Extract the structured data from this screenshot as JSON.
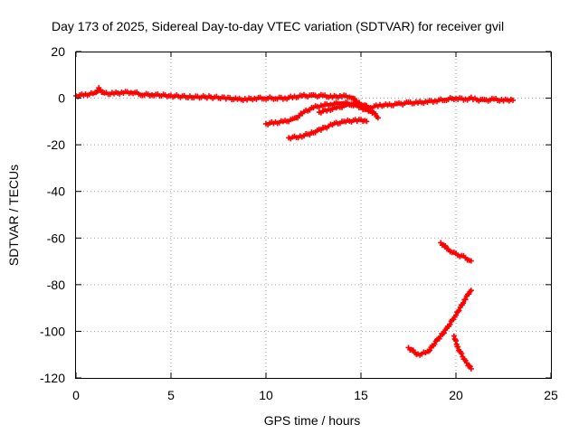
{
  "chart_data": {
    "type": "scatter",
    "title": "Day 173 of 2025, Sidereal Day-to-day VTEC variation (SDTVAR) for receiver gvil",
    "xlabel": "GPS time / hours",
    "ylabel": "SDTVAR / TECUs",
    "xlim": [
      0,
      25
    ],
    "ylim": [
      -120,
      20
    ],
    "xticks": [
      0,
      5,
      10,
      15,
      20,
      25
    ],
    "yticks": [
      20,
      0,
      -20,
      -40,
      -60,
      -80,
      -100,
      -120
    ],
    "grid": true,
    "marker_color": "#ff0000",
    "series": [
      {
        "name": "main-trace",
        "x": [
          0,
          0.5,
          1,
          1.2,
          1.5,
          2,
          2.5,
          3,
          3.5,
          4,
          5,
          6,
          7,
          8,
          8.5,
          9,
          9.5,
          10,
          10.5,
          11,
          11.5,
          12,
          12.5,
          13,
          13.5,
          14,
          14.5,
          15,
          15.5,
          16,
          16.5,
          17,
          17.5,
          18,
          18.5,
          19,
          19.5,
          20,
          20.5,
          20.8,
          21,
          21.5,
          22,
          22.5,
          23
        ],
        "y": [
          1,
          1.5,
          2,
          4,
          2,
          2,
          2.5,
          2.5,
          1.5,
          1.5,
          1,
          0.5,
          0.5,
          0,
          -0.5,
          -0.5,
          0,
          0,
          0,
          0,
          0.5,
          1,
          1,
          1,
          0.5,
          1,
          0.5,
          -3,
          -4,
          -3,
          -3,
          -2.5,
          -2,
          -2,
          -1.5,
          -1,
          -0.5,
          0,
          -0.5,
          0,
          -0.5,
          -1,
          -0.5,
          -1,
          -0.5
        ]
      },
      {
        "name": "arc-1",
        "x": [
          10,
          10.5,
          11,
          11.5,
          12,
          12.5,
          13,
          13.5,
          14,
          14.5,
          15,
          15.5
        ],
        "y": [
          -11,
          -10.5,
          -10,
          -9,
          -6,
          -4,
          -3,
          -2.5,
          -2,
          -2.5,
          -4,
          -6
        ]
      },
      {
        "name": "arc-2",
        "x": [
          11.2,
          11.8,
          12.4,
          13,
          13.6,
          14.2,
          14.8,
          15.3
        ],
        "y": [
          -17,
          -16.5,
          -15,
          -13,
          -11,
          -10,
          -9.5,
          -9.5
        ]
      },
      {
        "name": "arc-3",
        "x": [
          12.8,
          13.3,
          13.8,
          14.3,
          14.8,
          15.2,
          15.6,
          15.9
        ],
        "y": [
          -6,
          -5,
          -4,
          -3,
          -2,
          -3,
          -6,
          -8
        ]
      },
      {
        "name": "arc-4",
        "x": [
          19.2,
          19.6,
          20,
          20.4,
          20.8
        ],
        "y": [
          -62,
          -65,
          -67,
          -68,
          -70
        ]
      },
      {
        "name": "arc-5",
        "x": [
          17.5,
          18,
          18.5,
          19,
          19.5,
          20,
          20.5,
          20.8
        ],
        "y": [
          -107,
          -110,
          -109,
          -104,
          -99,
          -93,
          -86,
          -82
        ]
      },
      {
        "name": "arc-6",
        "x": [
          19.9,
          20.1,
          20.3,
          20.5,
          20.7,
          20.8
        ],
        "y": [
          -102,
          -107,
          -110,
          -113,
          -115,
          -116
        ]
      }
    ]
  }
}
